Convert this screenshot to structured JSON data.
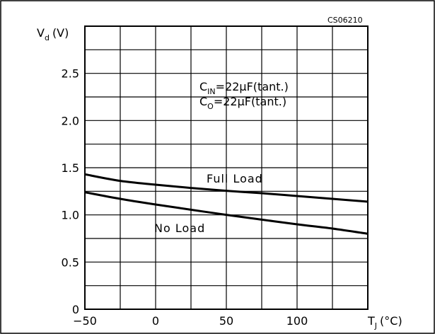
{
  "chart_data": {
    "type": "line",
    "code": "CS06210",
    "ylabel": {
      "main": "V",
      "sub": "d",
      "unit": "(V)"
    },
    "xlabel": {
      "main": "T",
      "sub": "J",
      "unit": "(°C)"
    },
    "xlim": [
      -50,
      150
    ],
    "ylim": [
      0,
      3.0
    ],
    "x_ticks": [
      -50,
      0,
      50,
      100
    ],
    "x_tick_labels": [
      "−50",
      "0",
      "50",
      "100"
    ],
    "y_ticks": [
      0,
      0.5,
      1.0,
      1.5,
      2.0,
      2.5
    ],
    "y_tick_labels": [
      "0",
      "0.5",
      "1.0",
      "1.5",
      "2.0",
      "2.5"
    ],
    "grid": true,
    "series": [
      {
        "name": "Full Load",
        "x": [
          -50,
          -25,
          0,
          25,
          50,
          75,
          100,
          125,
          150
        ],
        "y": [
          1.43,
          1.36,
          1.32,
          1.285,
          1.255,
          1.23,
          1.2,
          1.17,
          1.14
        ]
      },
      {
        "name": "No Load",
        "x": [
          -50,
          -25,
          0,
          25,
          50,
          75,
          100,
          125,
          150
        ],
        "y": [
          1.24,
          1.17,
          1.11,
          1.055,
          1.0,
          0.95,
          0.9,
          0.855,
          0.8
        ]
      }
    ],
    "annotation": {
      "line1": {
        "pre": "C",
        "sub": "IN",
        "post": "=22μF(tant.)"
      },
      "line2": {
        "pre": "C",
        "sub": "O",
        "post": "=22μF(tant.)"
      }
    }
  }
}
